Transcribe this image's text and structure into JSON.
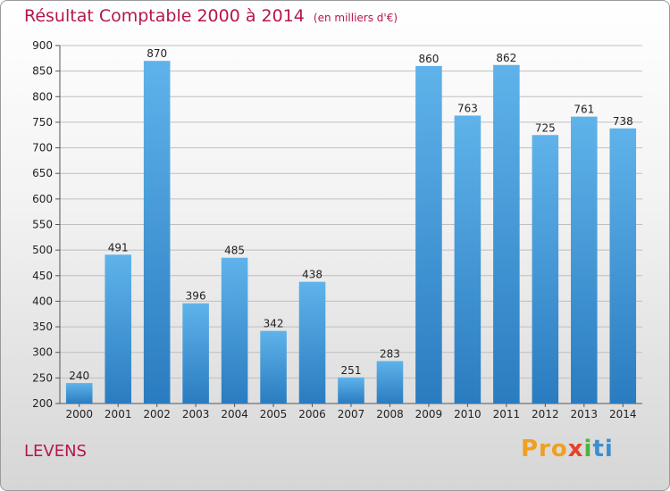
{
  "header": {
    "title": "Résultat Comptable 2000 à 2014",
    "subtitle": "(en milliers d'€)"
  },
  "footer": {
    "commune": "LEVENS",
    "logo": [
      "Pro",
      "x",
      "i",
      "ti"
    ]
  },
  "colors": {
    "bar_top": "#5fb3ea",
    "bar_bottom": "#2a7cc0",
    "title": "#b5174a",
    "grid": "#bfbfbf"
  },
  "chart_data": {
    "type": "bar",
    "title": "Résultat Comptable 2000 à 2014",
    "subtitle": "(en milliers d'€)",
    "categories": [
      "2000",
      "2001",
      "2002",
      "2003",
      "2004",
      "2005",
      "2006",
      "2007",
      "2008",
      "2009",
      "2010",
      "2011",
      "2012",
      "2013",
      "2014"
    ],
    "values": [
      240,
      491,
      870,
      396,
      485,
      342,
      438,
      251,
      283,
      860,
      763,
      862,
      725,
      761,
      738
    ],
    "ylim": [
      200,
      900
    ],
    "yticks": [
      200,
      250,
      300,
      350,
      400,
      450,
      500,
      550,
      600,
      650,
      700,
      750,
      800,
      850,
      900
    ],
    "grid": true,
    "data_labels": true
  }
}
